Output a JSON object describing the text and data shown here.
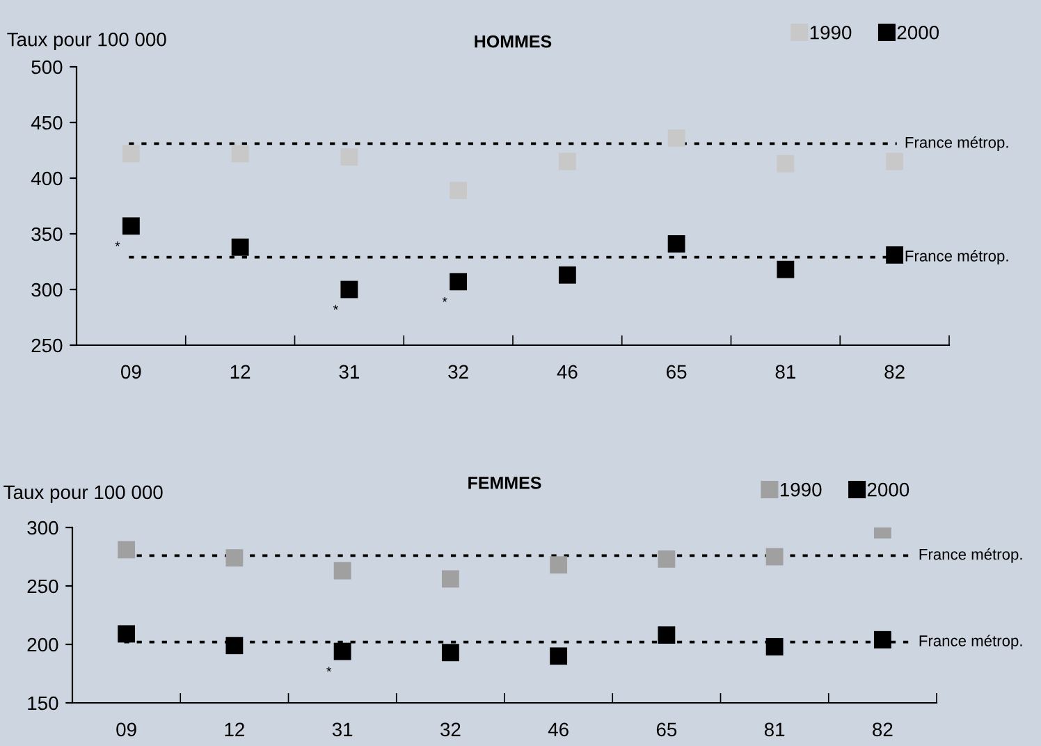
{
  "chart_data": [
    {
      "type": "scatter",
      "title": "HOMMES",
      "ylabel": "Taux pour 100 000",
      "categories": [
        "09",
        "12",
        "31",
        "32",
        "46",
        "65",
        "81",
        "82"
      ],
      "series": [
        {
          "name": "1990",
          "color": "#c8c8c8",
          "values": [
            422,
            422,
            419,
            389,
            415,
            436,
            413,
            415
          ]
        },
        {
          "name": "2000",
          "color": "#000000",
          "values": [
            357,
            338,
            300,
            307,
            313,
            341,
            318,
            331
          ]
        }
      ],
      "ylim": [
        250,
        500
      ],
      "yticks": [
        250,
        300,
        350,
        400,
        450,
        500
      ],
      "marker": "square",
      "grid": false,
      "legend": "top right",
      "ref_lines": [
        {
          "axis": "y",
          "value": 431,
          "label": "France métrop.",
          "color": "#000000",
          "line_style": "dotted"
        },
        {
          "axis": "y",
          "value": 329,
          "label": "France métrop.",
          "color": "#000000",
          "line_style": "dotted"
        }
      ],
      "annotations": [
        {
          "text": "*",
          "x": "09",
          "y": 357
        },
        {
          "text": "*",
          "x": "31",
          "y": 300
        },
        {
          "text": "*",
          "x": "32",
          "y": 307
        }
      ]
    },
    {
      "type": "scatter",
      "title": "FEMMES",
      "ylabel": "Taux pour 100 000",
      "categories": [
        "09",
        "12",
        "31",
        "32",
        "46",
        "65",
        "81",
        "82"
      ],
      "series": [
        {
          "name": "1990",
          "color": "#a0a0a0",
          "values": [
            281,
            274,
            263,
            256,
            268,
            273,
            275,
            298
          ]
        },
        {
          "name": "2000",
          "color": "#000000",
          "values": [
            209,
            199,
            194,
            193,
            190,
            208,
            198,
            204
          ]
        }
      ],
      "ylim": [
        150,
        300
      ],
      "yticks": [
        150,
        200,
        250,
        300
      ],
      "marker": "square",
      "grid": false,
      "legend": "top right",
      "ref_lines": [
        {
          "axis": "y",
          "value": 276,
          "label": "France métrop.",
          "color": "#000000",
          "line_style": "dotted"
        },
        {
          "axis": "y",
          "value": 202,
          "label": "France métrop.",
          "color": "#000000",
          "line_style": "dotted"
        }
      ],
      "annotations": [
        {
          "text": "*",
          "x": "31",
          "y": 194
        }
      ]
    }
  ]
}
